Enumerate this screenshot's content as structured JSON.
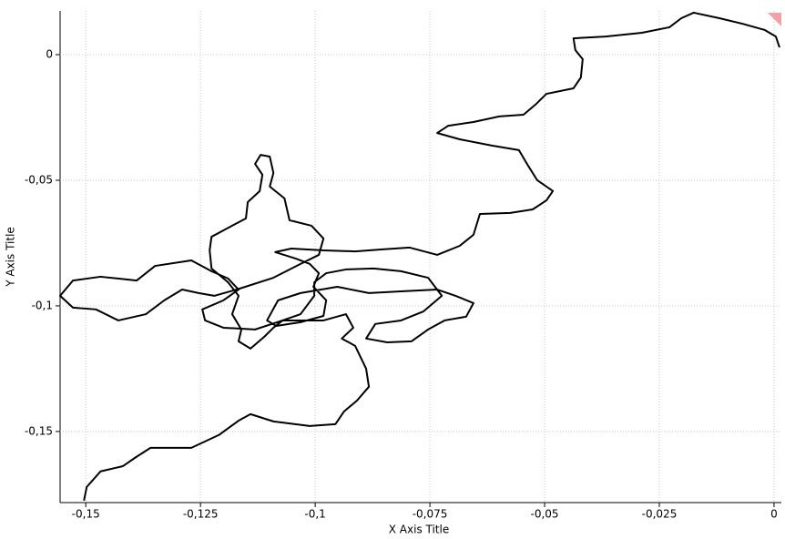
{
  "chart_data": {
    "type": "line",
    "x_label": "X Axis Title",
    "y_label": "Y Axis Title",
    "color": "#000000",
    "grid": true,
    "xlim": [
      -0.1556,
      0.0016
    ],
    "ylim": [
      -0.1783,
      0.0174
    ],
    "xticks": [
      {
        "value": -0.15,
        "label": "-0,15"
      },
      {
        "value": -0.125,
        "label": "-0,125"
      },
      {
        "value": -0.1,
        "label": "-0,1"
      },
      {
        "value": -0.075,
        "label": "-0,075"
      },
      {
        "value": -0.05,
        "label": "-0,05"
      },
      {
        "value": -0.025,
        "label": "-0,025"
      },
      0
    ],
    "yticks": [
      {
        "value": -0.15,
        "label": "-0,15"
      },
      {
        "value": -0.1,
        "label": "-0,1"
      },
      {
        "value": -0.05,
        "label": "-0,05"
      },
      0
    ],
    "x": [
      0.0012,
      0.0004,
      -0.002,
      -0.0069,
      -0.0119,
      -0.0175,
      -0.0202,
      -0.0228,
      -0.0288,
      -0.0367,
      -0.0437,
      -0.0433,
      -0.0417,
      -0.0421,
      -0.0437,
      -0.0496,
      -0.052,
      -0.0546,
      -0.0599,
      -0.0655,
      -0.071,
      -0.0734,
      -0.0685,
      -0.0615,
      -0.0556,
      -0.0536,
      -0.0516,
      -0.0482,
      -0.0496,
      -0.0526,
      -0.0575,
      -0.0641,
      -0.0655,
      -0.0685,
      -0.0734,
      -0.0794,
      -0.0853,
      -0.0913,
      -0.0982,
      -0.1052,
      -0.1087,
      -0.1042,
      -0.1012,
      -0.0992,
      -0.1004,
      -0.0976,
      -0.0982,
      -0.1032,
      -0.1085,
      -0.1105,
      -0.1081,
      -0.1032,
      -0.0952,
      -0.0883,
      -0.0813,
      -0.0734,
      -0.0694,
      -0.0655,
      -0.0671,
      -0.0718,
      -0.0754,
      -0.079,
      -0.0843,
      -0.0889,
      -0.0869,
      -0.0813,
      -0.0764,
      -0.0724,
      -0.0754,
      -0.0813,
      -0.0873,
      -0.0933,
      -0.0976,
      -0.1002,
      -0.1002,
      -0.1032,
      -0.1071,
      -0.1091,
      -0.1111,
      -0.1141,
      -0.1167,
      -0.1161,
      -0.1181,
      -0.1167,
      -0.119,
      -0.1226,
      -0.123,
      -0.1226,
      -0.1181,
      -0.1151,
      -0.1147,
      -0.1121,
      -0.1115,
      -0.1131,
      -0.1119,
      -0.1099,
      -0.1091,
      -0.1099,
      -0.1067,
      -0.1056,
      -0.1008,
      -0.0982,
      -0.0992,
      -0.1032,
      -0.1091,
      -0.1171,
      -0.122,
      -0.1254,
      -0.129,
      -0.1329,
      -0.1369,
      -0.1429,
      -0.1478,
      -0.1528,
      -0.1556,
      -0.1528,
      -0.1468,
      -0.1389,
      -0.1349,
      -0.127,
      -0.1226,
      -0.119,
      -0.1167,
      -0.12,
      -0.1246,
      -0.124,
      -0.12,
      -0.1131,
      -0.1071,
      -0.0982,
      -0.0933,
      -0.0917,
      -0.0942,
      -0.0913,
      -0.0889,
      -0.0883,
      -0.0909,
      -0.0937,
      -0.0956,
      -0.1012,
      -0.1091,
      -0.1141,
      -0.1167,
      -0.121,
      -0.127,
      -0.1359,
      -0.1393,
      -0.1419,
      -0.1468,
      -0.1498,
      -0.1504
    ],
    "values": [
      0.0029,
      0.0072,
      0.0098,
      0.0123,
      0.0145,
      0.0167,
      0.0145,
      0.0109,
      0.0087,
      0.0072,
      0.0065,
      0.0018,
      -0.0018,
      -0.0091,
      -0.0134,
      -0.0156,
      -0.0199,
      -0.0239,
      -0.0246,
      -0.0268,
      -0.0283,
      -0.0312,
      -0.0337,
      -0.0362,
      -0.038,
      -0.0442,
      -0.05,
      -0.0543,
      -0.058,
      -0.0616,
      -0.063,
      -0.0634,
      -0.0717,
      -0.0761,
      -0.0797,
      -0.0768,
      -0.0775,
      -0.0783,
      -0.0779,
      -0.0772,
      -0.0786,
      -0.0812,
      -0.0833,
      -0.087,
      -0.0924,
      -0.0978,
      -0.104,
      -0.1065,
      -0.108,
      -0.1058,
      -0.0978,
      -0.0949,
      -0.0924,
      -0.0949,
      -0.0942,
      -0.0935,
      -0.096,
      -0.0989,
      -0.1043,
      -0.1058,
      -0.1094,
      -0.1141,
      -0.1145,
      -0.113,
      -0.1072,
      -0.1058,
      -0.1022,
      -0.096,
      -0.0888,
      -0.0862,
      -0.0851,
      -0.0855,
      -0.087,
      -0.0906,
      -0.096,
      -0.1033,
      -0.1058,
      -0.1087,
      -0.1123,
      -0.117,
      -0.1141,
      -0.1094,
      -0.1033,
      -0.096,
      -0.0906,
      -0.0851,
      -0.0779,
      -0.0725,
      -0.0681,
      -0.0652,
      -0.0587,
      -0.0543,
      -0.0478,
      -0.0435,
      -0.0399,
      -0.0406,
      -0.0471,
      -0.0525,
      -0.0572,
      -0.0659,
      -0.0681,
      -0.0732,
      -0.0797,
      -0.0833,
      -0.0888,
      -0.0935,
      -0.096,
      -0.0949,
      -0.0935,
      -0.0978,
      -0.1033,
      -0.1058,
      -0.1014,
      -0.1007,
      -0.096,
      -0.0899,
      -0.0884,
      -0.0899,
      -0.0841,
      -0.0819,
      -0.0862,
      -0.0891,
      -0.0935,
      -0.0978,
      -0.1014,
      -0.1058,
      -0.1087,
      -0.1094,
      -0.1058,
      -0.1058,
      -0.1033,
      -0.1087,
      -0.113,
      -0.1159,
      -0.125,
      -0.1322,
      -0.1377,
      -0.142,
      -0.1471,
      -0.1478,
      -0.146,
      -0.1431,
      -0.1457,
      -0.1514,
      -0.1565,
      -0.1565,
      -0.1605,
      -0.1638,
      -0.1659,
      -0.1721,
      -0.1775
    ]
  }
}
